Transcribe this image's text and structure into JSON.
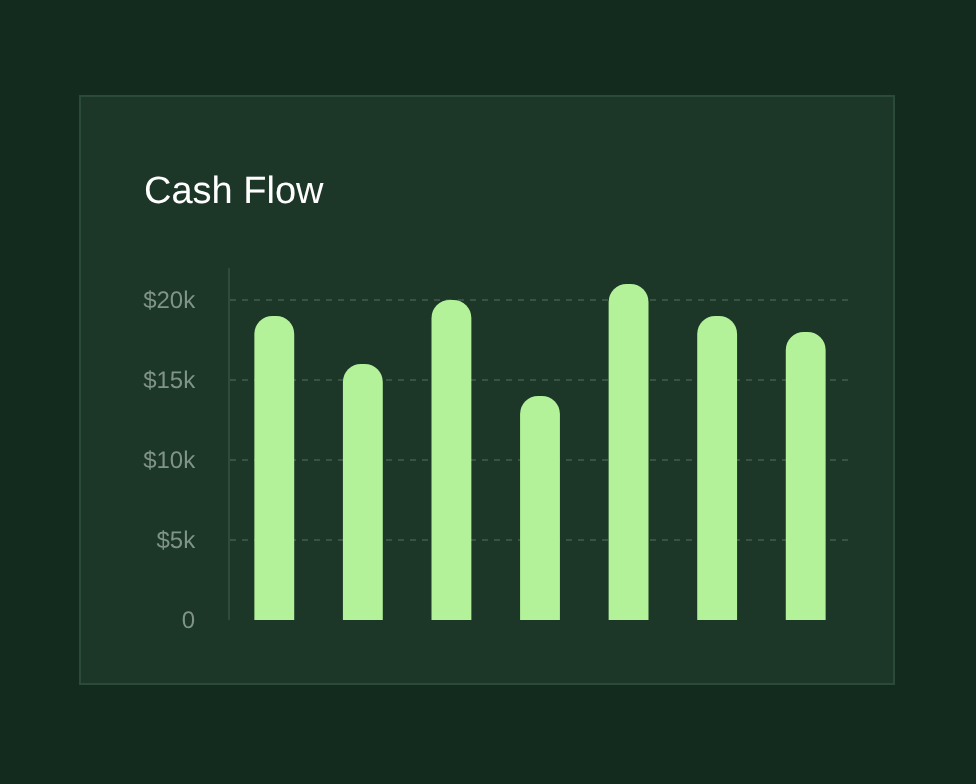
{
  "chart_data": {
    "type": "bar",
    "title": "Cash Flow",
    "categories": [
      null,
      null,
      null,
      null,
      null,
      null,
      null
    ],
    "values": [
      19000,
      16000,
      20000,
      14000,
      21000,
      19000,
      18000
    ],
    "color": "#b4f29a",
    "ylim": [
      0,
      22000
    ],
    "yticks": [
      {
        "value": 0,
        "label": "0"
      },
      {
        "value": 5000,
        "label": "$5k"
      },
      {
        "value": 10000,
        "label": "$10k"
      },
      {
        "value": 15000,
        "label": "$15k"
      },
      {
        "value": 20000,
        "label": "$20k"
      }
    ],
    "grid": "y",
    "tick_labels": "y",
    "legend": false
  }
}
